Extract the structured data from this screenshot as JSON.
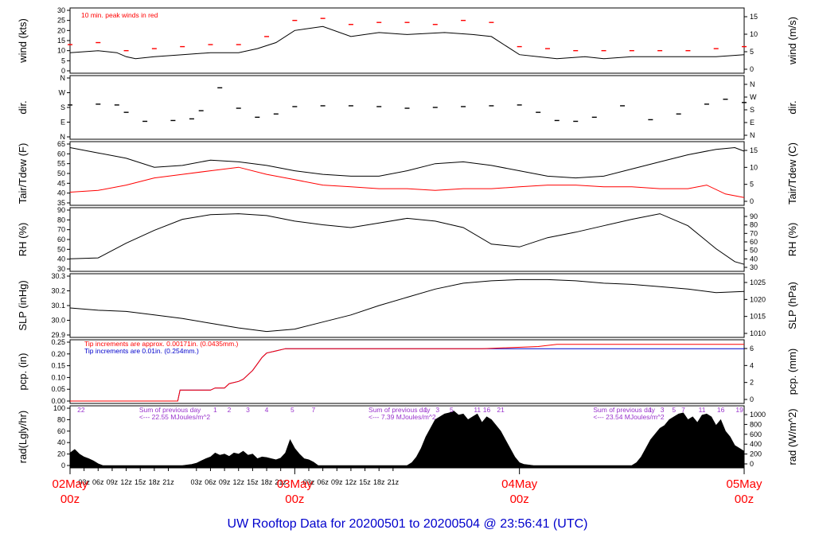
{
  "footer": {
    "title": "UW Rooftop Data for 20200501  to  20200504 @ 23:56:41  (UTC)"
  },
  "chart_data": {
    "type": "line",
    "x": {
      "start": "2020-05-02 00z",
      "end": "2020-05-05 00z",
      "tick_labels": [
        "03z",
        "06z",
        "09z",
        "12z",
        "15z",
        "18z",
        "21z",
        "03z",
        "06z",
        "09z",
        "12z",
        "15z",
        "18z",
        "21z",
        "03z",
        "06z",
        "09z",
        "12z",
        "15z",
        "18z",
        "21z"
      ],
      "major_labels": [
        {
          "day": "02May",
          "hour": "00z"
        },
        {
          "day": "03May",
          "hour": "00z"
        },
        {
          "day": "04May",
          "hour": "00z"
        },
        {
          "day": "05May",
          "hour": "00z"
        }
      ]
    },
    "panels": [
      {
        "id": "wind",
        "ylabel_left": "wind (kts)",
        "ylabel_right": "wind (m/s)",
        "left_ticks": [
          "0",
          "5",
          "10",
          "15",
          "20",
          "25",
          "30"
        ],
        "right_ticks": [
          "0",
          "5",
          "10",
          "15"
        ],
        "ylim": [
          0,
          30
        ],
        "annotation": "10 min. peak winds in red",
        "series": [
          {
            "color": "#000000",
            "hours": [
              0,
              6,
              10,
              12,
              14,
              18,
              24,
              30,
              36,
              40,
              44,
              48,
              54,
              60,
              66,
              72,
              80,
              86,
              90,
              96,
              100,
              104,
              110,
              114,
              120,
              126,
              132,
              138,
              144
            ],
            "values": [
              9,
              10,
              9,
              7,
              6,
              7,
              8,
              9,
              9,
              11,
              14,
              20,
              22,
              17,
              19,
              18,
              19,
              18,
              17,
              8,
              7,
              6,
              7,
              6,
              7,
              7,
              7,
              7,
              8
            ]
          },
          {
            "color": "#ff0000",
            "hours": [
              0,
              6,
              12,
              18,
              24,
              30,
              36,
              42,
              48,
              54,
              60,
              66,
              72,
              78,
              84,
              90,
              96,
              102,
              108,
              114,
              120,
              126,
              132,
              138,
              144
            ],
            "values": [
              13,
              14,
              10,
              11,
              12,
              13,
              13,
              17,
              25,
              26,
              23,
              24,
              24,
              23,
              25,
              24,
              12,
              11,
              10,
              10,
              10,
              10,
              10,
              11,
              12
            ]
          }
        ]
      },
      {
        "id": "dir",
        "ylabel_left": "dir.",
        "ylabel_right": "dir.",
        "left_ticks": [
          "N",
          "E",
          "S",
          "W",
          "N"
        ],
        "right_ticks": [
          "N",
          "E",
          "S",
          "W",
          "N"
        ],
        "ylim": [
          0,
          360
        ],
        "series": [
          {
            "color": "#000000",
            "hours": [
              0,
              6,
              10,
              12,
              16,
              22,
              26,
              28,
              32,
              36,
              40,
              44,
              48,
              54,
              60,
              66,
              72,
              78,
              84,
              90,
              96,
              100,
              104,
              108,
              112,
              118,
              124,
              130,
              136,
              140,
              144
            ],
            "values": [
              195,
              200,
              195,
              150,
              95,
              100,
              110,
              160,
              300,
              175,
              120,
              140,
              185,
              190,
              190,
              185,
              175,
              180,
              185,
              190,
              195,
              150,
              100,
              95,
              120,
              190,
              105,
              140,
              200,
              230,
              210
            ]
          }
        ]
      },
      {
        "id": "temp",
        "ylabel_left": "Tair/Tdew (F)",
        "ylabel_right": "Tair/Tdew (C)",
        "left_ticks": [
          "35",
          "40",
          "45",
          "50",
          "55",
          "60",
          "65"
        ],
        "right_ticks": [
          "0",
          "5",
          "10",
          "15"
        ],
        "ylim": [
          32,
          65
        ],
        "series": [
          {
            "name": "Tair",
            "color": "#000000",
            "hours": [
              0,
              6,
              12,
              18,
              24,
              30,
              36,
              42,
              48,
              54,
              60,
              66,
              72,
              78,
              84,
              90,
              96,
              102,
              108,
              114,
              120,
              126,
              132,
              138,
              142,
              144
            ],
            "values": [
              63,
              60,
              57,
              52,
              53,
              56,
              55,
              53,
              50,
              48,
              47,
              47,
              50,
              54,
              55,
              53,
              50,
              47,
              46,
              47,
              51,
              55,
              59,
              62,
              63,
              61
            ]
          },
          {
            "name": "Tdew",
            "color": "#ff0000",
            "hours": [
              0,
              6,
              12,
              18,
              24,
              30,
              36,
              42,
              48,
              54,
              60,
              66,
              72,
              78,
              84,
              90,
              96,
              102,
              108,
              114,
              120,
              126,
              132,
              136,
              140,
              144
            ],
            "values": [
              38,
              39,
              42,
              46,
              48,
              50,
              52,
              48,
              45,
              42,
              41,
              40,
              40,
              39,
              40,
              40,
              41,
              42,
              42,
              41,
              41,
              40,
              40,
              42,
              37,
              35
            ]
          }
        ]
      },
      {
        "id": "rh",
        "ylabel_left": "RH (%)",
        "ylabel_right": "RH (%)",
        "left_ticks": [
          "30",
          "40",
          "50",
          "60",
          "70",
          "80",
          "90"
        ],
        "right_ticks": [
          "30",
          "40",
          "50",
          "60",
          "70",
          "80",
          "90"
        ],
        "ylim": [
          28,
          92
        ],
        "series": [
          {
            "color": "#000000",
            "hours": [
              0,
              6,
              12,
              18,
              24,
              30,
              36,
              42,
              48,
              54,
              60,
              66,
              72,
              78,
              84,
              90,
              96,
              102,
              108,
              114,
              120,
              126,
              132,
              138,
              142,
              144
            ],
            "values": [
              39,
              40,
              56,
              70,
              82,
              87,
              88,
              86,
              80,
              76,
              73,
              78,
              83,
              80,
              73,
              55,
              52,
              62,
              68,
              75,
              82,
              88,
              75,
              50,
              36,
              33
            ]
          }
        ]
      },
      {
        "id": "slp",
        "ylabel_left": "SLP (inHg)",
        "ylabel_right": "SLP (hPa)",
        "left_ticks": [
          "29.9",
          "30.0",
          "30.1",
          "30.2",
          "30.3"
        ],
        "right_ticks": [
          "1010",
          "1015",
          "1020",
          "1025"
        ],
        "ylim": [
          29.85,
          30.35
        ],
        "series": [
          {
            "color": "#000000",
            "hours": [
              0,
              6,
              12,
              18,
              24,
              30,
              36,
              42,
              48,
              54,
              60,
              66,
              72,
              78,
              84,
              90,
              96,
              102,
              108,
              114,
              120,
              126,
              132,
              138,
              144
            ],
            "values": [
              30.08,
              30.06,
              30.05,
              30.02,
              29.99,
              29.95,
              29.91,
              29.88,
              29.9,
              29.96,
              30.02,
              30.1,
              30.17,
              30.24,
              30.29,
              30.31,
              30.32,
              30.32,
              30.31,
              30.29,
              30.28,
              30.26,
              30.24,
              30.21,
              30.22
            ]
          }
        ]
      },
      {
        "id": "pcp",
        "ylabel_left": "pcp. (in)",
        "ylabel_right": "pcp. (mm)",
        "left_ticks": [
          "0.00",
          "0.05",
          "0.10",
          "0.15",
          "0.20",
          "0.25"
        ],
        "right_ticks": [
          "0",
          "2",
          "4",
          "6"
        ],
        "ylim": [
          0,
          0.27
        ],
        "annotations": [
          "Tip increments are approx. 0.00171in. (0.0435mm.)",
          "Tip increments are 0.01in. (0.254mm.)"
        ],
        "series": [
          {
            "name": "tipping bucket 0.01in",
            "color": "#0000cc",
            "hours": [
              0,
              23,
              23.5,
              30,
              31,
              33,
              34,
              36,
              37,
              39,
              40,
              41,
              42,
              44,
              46,
              48,
              60,
              90,
              144
            ],
            "values": [
              0,
              0,
              0.05,
              0.05,
              0.06,
              0.06,
              0.08,
              0.09,
              0.1,
              0.14,
              0.17,
              0.2,
              0.22,
              0.23,
              0.24,
              0.24,
              0.24,
              0.24,
              0.24
            ]
          },
          {
            "name": "tipping bucket 0.00171in",
            "color": "#ff0000",
            "hours": [
              0,
              23,
              23.5,
              30,
              31,
              33,
              34,
              36,
              37,
              39,
              40,
              41,
              42,
              44,
              46,
              48,
              60,
              88,
              100,
              104,
              144
            ],
            "values": [
              0,
              0,
              0.05,
              0.05,
              0.06,
              0.06,
              0.08,
              0.09,
              0.1,
              0.14,
              0.17,
              0.2,
              0.22,
              0.23,
              0.24,
              0.24,
              0.24,
              0.24,
              0.25,
              0.26,
              0.26
            ]
          }
        ]
      },
      {
        "id": "rad",
        "ylabel_left": "rad(Lgly/hr)",
        "ylabel_right": "rad (W/m^2)",
        "left_ticks": [
          "0",
          "20",
          "40",
          "60",
          "80",
          "100"
        ],
        "right_ticks": [
          "0",
          "200",
          "400",
          "600",
          "800",
          "1000"
        ],
        "ylim": [
          0,
          100
        ],
        "annotations": [
          {
            "hour": 0.2,
            "text": "22"
          },
          {
            "hour": 10,
            "text": "Sum of previous day"
          },
          {
            "hour": 10,
            "text": "<--- 22.55 MJoules/m^2"
          },
          {
            "hour": 59,
            "text": "Sum of previous day"
          },
          {
            "hour": 59,
            "text": "<--- 7.39 MJoules/m^2"
          },
          {
            "hour": 107,
            "text": "Sum of previous day"
          },
          {
            "hour": 107,
            "text": "<--- 23.54 MJoules/m^2"
          }
        ],
        "hour_markers": [
          {
            "hour": 31,
            "text": "1"
          },
          {
            "hour": 34,
            "text": "2"
          },
          {
            "hour": 38,
            "text": "3"
          },
          {
            "hour": 42,
            "text": "4"
          },
          {
            "hour": 47.5,
            "text": "5"
          },
          {
            "hour": 52,
            "text": "7"
          },
          {
            "hour": 76,
            "text": "1"
          },
          {
            "hour": 78.5,
            "text": "3"
          },
          {
            "hour": 81.5,
            "text": "5"
          },
          {
            "hour": 87,
            "text": "11"
          },
          {
            "hour": 89,
            "text": "16"
          },
          {
            "hour": 92,
            "text": "21"
          },
          {
            "hour": 124,
            "text": "1"
          },
          {
            "hour": 126.5,
            "text": "3"
          },
          {
            "hour": 129,
            "text": "5"
          },
          {
            "hour": 131,
            "text": "7"
          },
          {
            "hour": 135,
            "text": "11"
          },
          {
            "hour": 139,
            "text": "16"
          },
          {
            "hour": 143,
            "text": "19"
          }
        ],
        "series": [
          {
            "color": "#000000",
            "hours": [
              0,
              1,
              2,
              3,
              4,
              5,
              6,
              7,
              24,
              25,
              26,
              27,
              28,
              29,
              30,
              31,
              32,
              33,
              34,
              35,
              36,
              37,
              38,
              39,
              40,
              41,
              42,
              43,
              44,
              45,
              46,
              47,
              48,
              49,
              50,
              51,
              52,
              53,
              72,
              73,
              74,
              75,
              76,
              77,
              78,
              79,
              80,
              81,
              82,
              83,
              84,
              85,
              86,
              87,
              88,
              89,
              90,
              91,
              92,
              93,
              94,
              95,
              96,
              97,
              98,
              99,
              100,
              120,
              121,
              122,
              123,
              124,
              125,
              126,
              127,
              128,
              129,
              130,
              131,
              132,
              133,
              134,
              135,
              136,
              137,
              138,
              139,
              140,
              141,
              142,
              143,
              144
            ],
            "values": [
              22,
              28,
              20,
              15,
              12,
              8,
              3,
              0,
              0,
              1,
              2,
              4,
              8,
              12,
              15,
              22,
              18,
              20,
              16,
              22,
              20,
              25,
              18,
              20,
              12,
              15,
              14,
              12,
              10,
              13,
              22,
              45,
              30,
              20,
              12,
              10,
              6,
              0,
              0,
              5,
              15,
              30,
              50,
              65,
              80,
              85,
              90,
              92,
              95,
              88,
              90,
              80,
              85,
              90,
              75,
              85,
              80,
              70,
              60,
              45,
              30,
              15,
              5,
              2,
              1,
              0,
              0,
              0,
              5,
              15,
              30,
              45,
              55,
              65,
              70,
              80,
              85,
              90,
              92,
              80,
              85,
              75,
              88,
              90,
              85,
              70,
              80,
              60,
              50,
              35,
              30,
              25
            ]
          }
        ]
      }
    ]
  }
}
